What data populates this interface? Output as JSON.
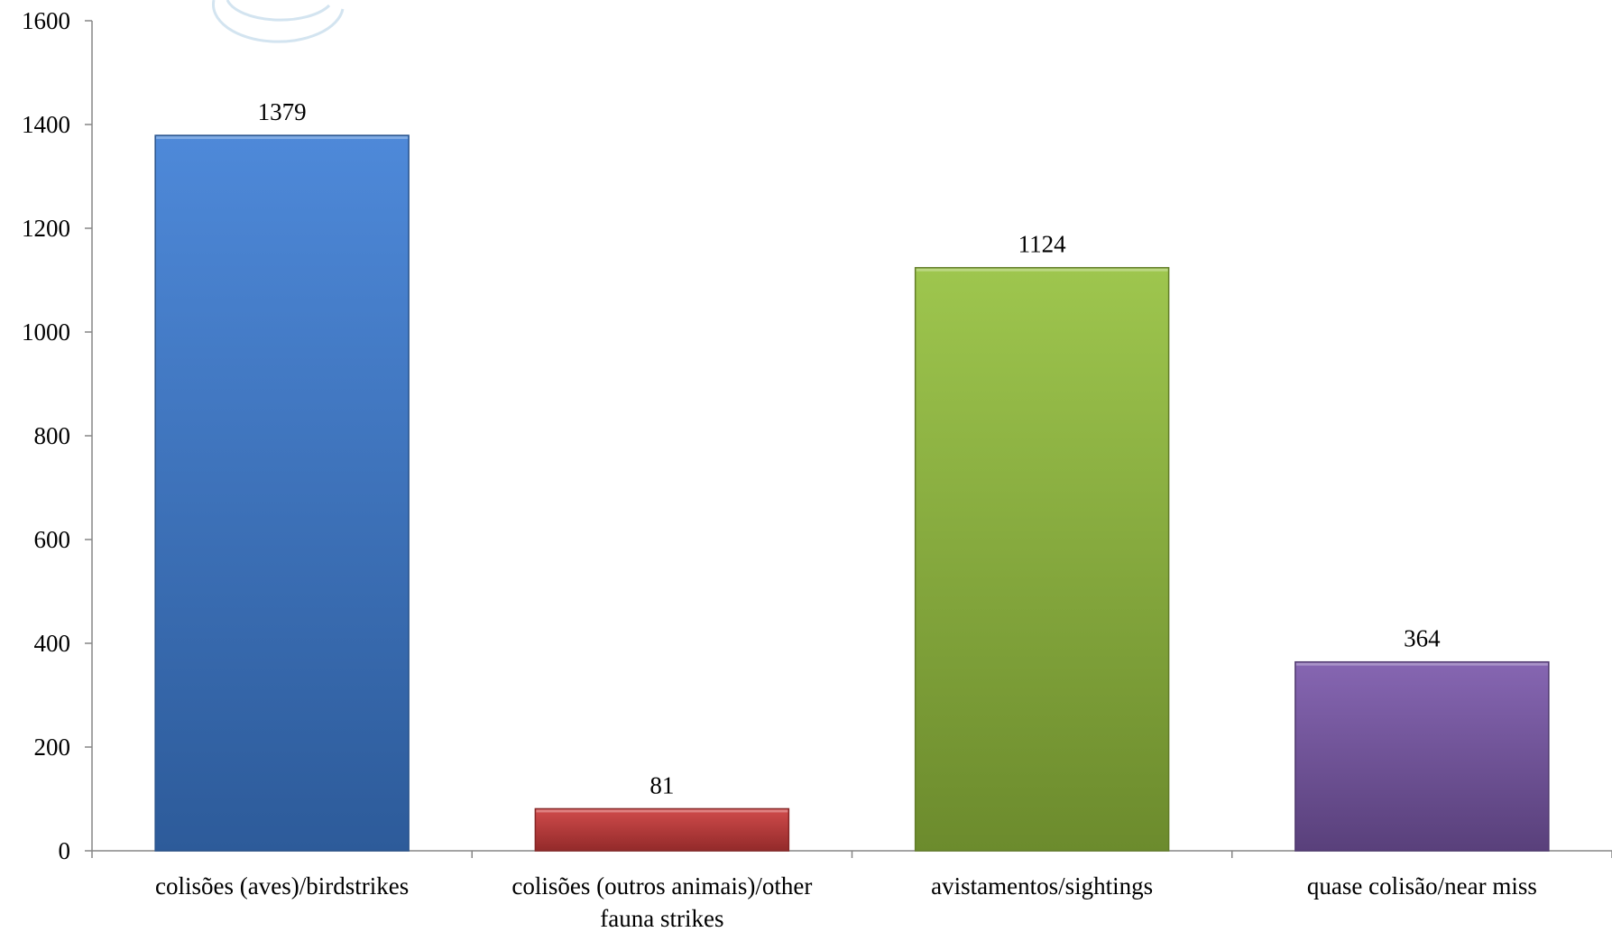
{
  "chart_data": {
    "type": "bar",
    "categories": [
      [
        "colisões (aves)/birdstrikes"
      ],
      [
        "colisões (outros animais)/other",
        "fauna strikes"
      ],
      [
        "avistamentos/sightings"
      ],
      [
        "quase colisão/near miss"
      ]
    ],
    "values": [
      1379,
      81,
      1124,
      364
    ],
    "value_labels": [
      "1379",
      "81",
      "1124",
      "364"
    ],
    "colors": [
      "#3f7fd6",
      "#cc3b3b",
      "#96c13f",
      "#7b59ab"
    ],
    "title": "",
    "xlabel": "",
    "ylabel": "",
    "ylim": [
      0,
      1600
    ],
    "yticks": [
      0,
      200,
      400,
      600,
      800,
      1000,
      1200,
      1400,
      1600
    ],
    "ytick_labels": [
      "0",
      "200",
      "400",
      "600",
      "800",
      "1000",
      "1200",
      "1400",
      "1600"
    ],
    "grid": false,
    "legend": "none"
  }
}
